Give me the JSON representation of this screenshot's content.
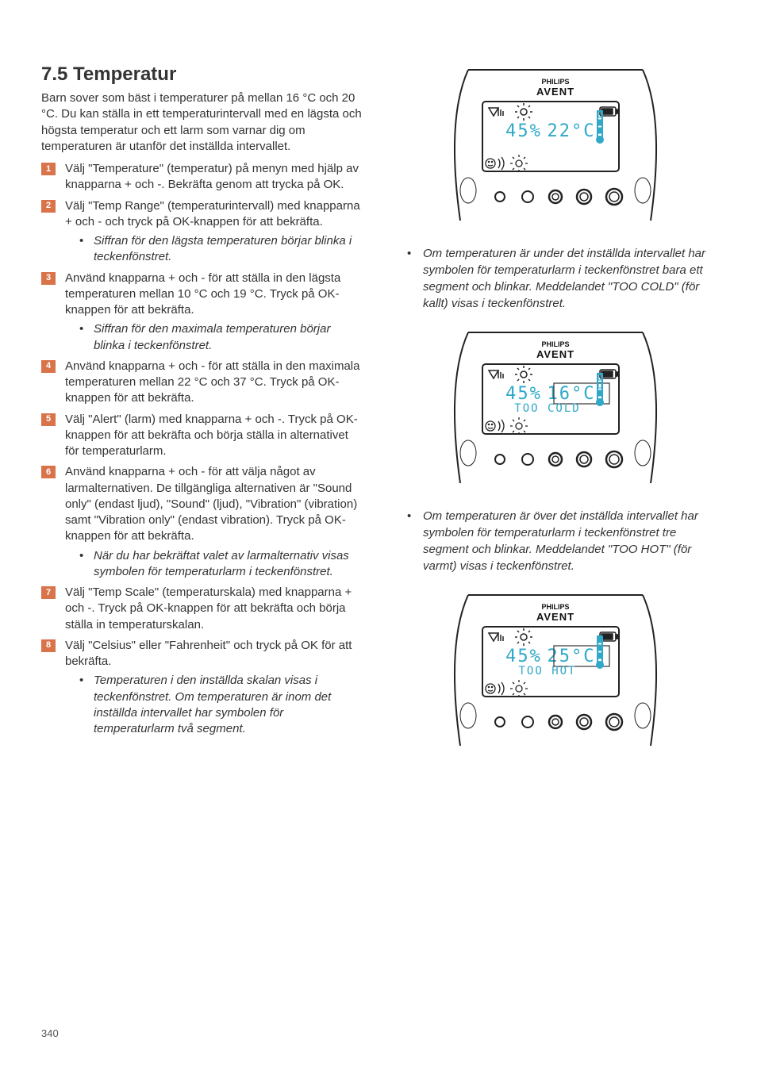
{
  "heading": "7.5 Temperatur",
  "intro": "Barn sover som bäst i temperaturer på mellan 16 °C och 20 °C. Du kan ställa in ett temperaturintervall med en lägsta och högsta temperatur och ett larm som varnar dig om temperaturen är utanför det inställda intervallet.",
  "steps": [
    {
      "n": "1",
      "text": "Välj \"Temperature\" (temperatur) på menyn med hjälp av knapparna + och -. Bekräfta genom att trycka på OK.",
      "subs": []
    },
    {
      "n": "2",
      "text": "Välj \"Temp Range\" (temperaturintervall) med knapparna + och - och tryck på OK-knappen för att bekräfta.",
      "subs": [
        "Siffran för den lägsta temperaturen börjar blinka i teckenfönstret."
      ]
    },
    {
      "n": "3",
      "text": "Använd knapparna + och - för att ställa in den lägsta temperaturen mellan 10 °C och 19 °C. Tryck på OK-knappen för att bekräfta.",
      "subs": [
        "Siffran för den maximala temperaturen börjar blinka i teckenfönstret."
      ]
    },
    {
      "n": "4",
      "text": "Använd knapparna + och - för att ställa in den maximala temperaturen mellan 22 °C och 37 °C. Tryck på OK-knappen för att bekräfta.",
      "subs": []
    },
    {
      "n": "5",
      "text": "Välj \"Alert\" (larm) med knapparna + och -. Tryck på OK-knappen för att bekräfta och börja ställa in alternativet för temperaturlarm.",
      "subs": []
    },
    {
      "n": "6",
      "text": "Använd knapparna + och - för att välja något av larmalternativen. De tillgängliga alternativen är \"Sound only\" (endast ljud), \"Sound\" (ljud), \"Vibration\" (vibration) samt \"Vibration only\" (endast vibration). Tryck på OK-knappen för att bekräfta.",
      "subs": [
        "När du har bekräftat valet av larmalternativ visas symbolen för temperaturlarm i teckenfönstret."
      ]
    },
    {
      "n": "7",
      "text": "Välj \"Temp Scale\" (temperaturskala) med knapparna + och -. Tryck på OK-knappen för att bekräfta och börja ställa in temperaturskalan.",
      "subs": []
    },
    {
      "n": "8",
      "text": "Välj \"Celsius\" eller \"Fahrenheit\" och tryck på OK för att bekräfta.",
      "subs": [
        "Temperaturen i den inställda skalan visas i teckenfönstret. Om temperaturen är inom det inställda intervallet har symbolen för temperaturlarm två segment."
      ]
    }
  ],
  "right_bullets": [
    "Om temperaturen är under det inställda intervallet har symbolen för temperaturlarm i teckenfönstret bara ett segment och blinkar. Meddelandet \"TOO COLD\" (för kallt) visas i teckenfönstret.",
    "Om temperaturen är över det inställda intervallet har symbolen för temperaturlarm i teckenfönstret tre segment och blinkar. Meddelandet \"TOO HOT\" (för varmt) visas i teckenfönstret."
  ],
  "devices": [
    {
      "humidity": "45%",
      "temp": "22°C",
      "msg": "",
      "therm_segments": 2
    },
    {
      "humidity": "45%",
      "temp": "16°C",
      "msg": "TOO COLD",
      "therm_segments": 1
    },
    {
      "humidity": "45%",
      "temp": "25°C",
      "msg": "TOO HOT",
      "therm_segments": 3
    }
  ],
  "brand_top": "PHILIPS",
  "brand_bottom": "AVENT",
  "lcd_color": "#2fa8c9",
  "badge_color": "#d9734a",
  "page_number": "340"
}
